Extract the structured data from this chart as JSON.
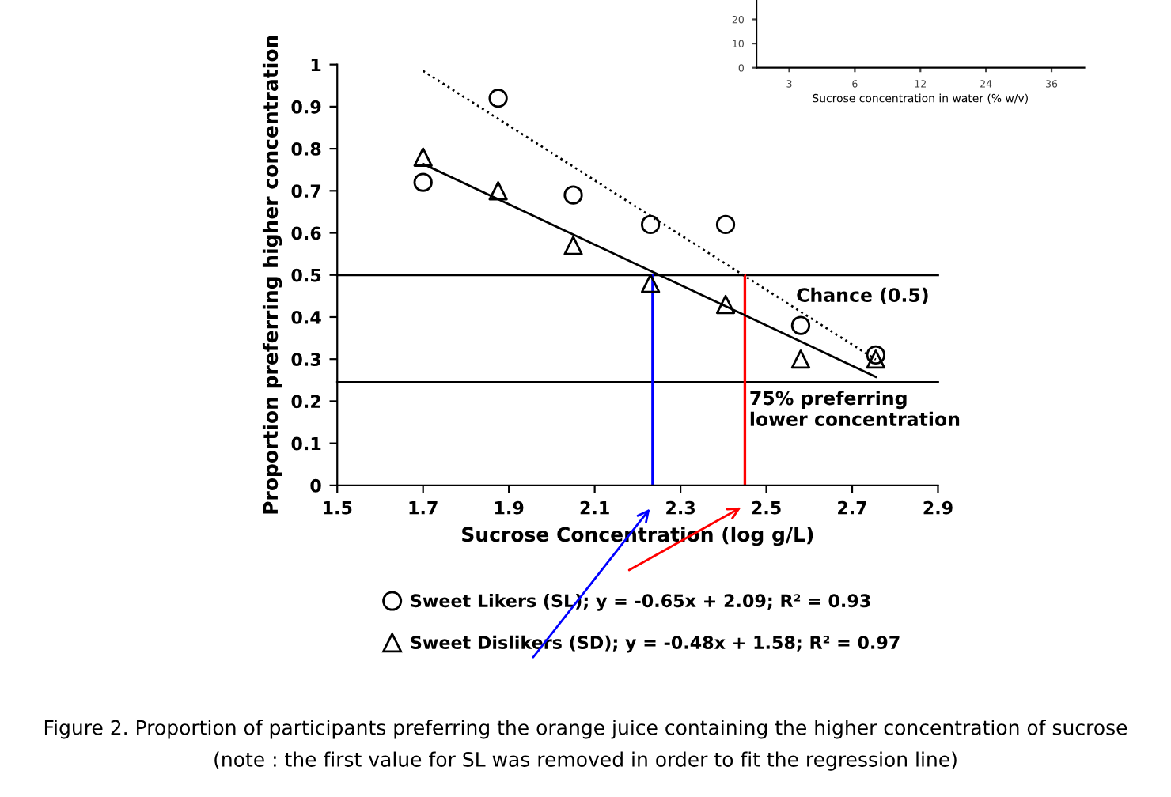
{
  "chart_data": [
    {
      "type": "scatter",
      "xlabel": "Sucrose Concentration (log g/L)",
      "ylabel": "Proportion preferring higher concentration",
      "xlim": [
        1.5,
        2.9
      ],
      "xticks": [
        1.5,
        1.7,
        1.9,
        2.1,
        2.3,
        2.5,
        2.7,
        2.9
      ],
      "ylim": [
        0,
        1
      ],
      "yticks": [
        0,
        0.1,
        0.2,
        0.3,
        0.4,
        0.5,
        0.6,
        0.7,
        0.8,
        0.9,
        1
      ],
      "series": [
        {
          "name": "Sweet Likers (SL); y = -0.65x + 2.09; R² = 0.93",
          "color": "#000000",
          "marker": "circle",
          "x": [
            1.7,
            1.875,
            2.05,
            2.23,
            2.405,
            2.58,
            2.755
          ],
          "values": [
            0.72,
            0.92,
            0.69,
            0.62,
            0.62,
            0.38,
            0.31
          ]
        },
        {
          "name": "Sweet Dislikers (SD); y = -0.48x + 1.58; R² = 0.97",
          "color": "#000000",
          "marker": "triangle",
          "x": [
            1.7,
            1.875,
            2.05,
            2.23,
            2.405,
            2.58,
            2.755
          ],
          "values": [
            0.78,
            0.7,
            0.57,
            0.48,
            0.43,
            0.3,
            0.3
          ]
        },
        {
          "type": "line",
          "color": "#000000",
          "line_style": "dotted",
          "x": [
            1.7,
            2.755
          ],
          "values": [
            0.985,
            0.299
          ]
        },
        {
          "type": "line",
          "color": "#000000",
          "line_style": "solid",
          "x": [
            1.7,
            2.755
          ],
          "values": [
            0.764,
            0.258
          ]
        }
      ],
      "ref_lines": [
        {
          "axis": "y",
          "value": 0.5,
          "label": "Chance (0.5)",
          "color": "#000000"
        },
        {
          "axis": "y",
          "value": 0.245,
          "label": "75% preferring\nlower concentration",
          "color": "#000000"
        },
        {
          "axis": "x",
          "value": 2.235,
          "color": "#0000ff"
        },
        {
          "axis": "x",
          "value": 2.45,
          "color": "#ff0000"
        }
      ],
      "legend": "bottom",
      "grid": false,
      "annotations": [
        "Figure 2. Proportion of participants preferring the orange juice containing the higher concentration of sucrose",
        "(note : the first value for SL was removed in order to fit the regression line)"
      ]
    },
    {
      "type": "line",
      "categories": [
        "3",
        "6",
        "12",
        "24",
        "36"
      ],
      "xlabel": "Sucrose concentration in water (% w/v)",
      "ylim": [
        0,
        28
      ],
      "yticks": [
        0,
        10,
        20
      ]
    }
  ]
}
